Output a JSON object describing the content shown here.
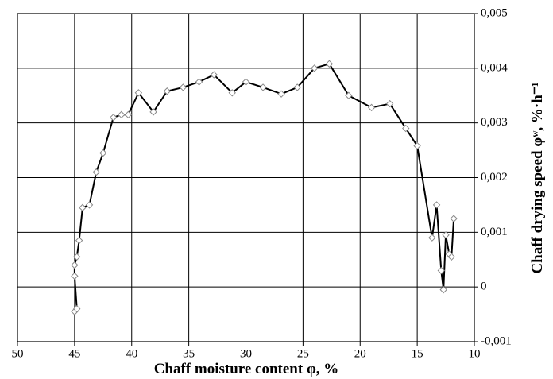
{
  "chart_data": {
    "type": "line",
    "x_label": "Chaff moisture content φ, %",
    "y_label": "Chaff drying speed φʷ, %·h⁻¹",
    "xlim": [
      50,
      10
    ],
    "xticks": [
      50,
      45,
      40,
      35,
      30,
      25,
      20,
      15,
      10
    ],
    "ylim": [
      -0.001,
      0.005
    ],
    "yticks": [
      {
        "value": -0.001,
        "label": "-0,001"
      },
      {
        "value": 0,
        "label": "0"
      },
      {
        "value": 0.001,
        "label": "0,001"
      },
      {
        "value": 0.002,
        "label": "0,002"
      },
      {
        "value": 0.003,
        "label": "0,003"
      },
      {
        "value": 0.004,
        "label": "0,004"
      },
      {
        "value": 0.005,
        "label": "0,005"
      }
    ],
    "grid": true,
    "line_color": "#000000",
    "marker_color": "#888888",
    "x": [
      45.0,
      44.8,
      45.0,
      45.0,
      44.8,
      44.6,
      44.3,
      43.7,
      43.1,
      42.5,
      41.6,
      40.9,
      40.3,
      39.4,
      38.1,
      36.9,
      35.5,
      34.1,
      32.8,
      31.2,
      30.0,
      28.5,
      26.9,
      25.5,
      24.0,
      22.7,
      21.0,
      19.0,
      17.4,
      16.0,
      15.0,
      13.7,
      13.3,
      12.9,
      12.7,
      12.5,
      12.2,
      12.0,
      11.8
    ],
    "values": [
      -0.00045,
      -0.0004,
      0.0002,
      0.0004,
      0.00055,
      0.00085,
      0.00145,
      0.0015,
      0.0021,
      0.00245,
      0.0031,
      0.00315,
      0.00315,
      0.00355,
      0.0032,
      0.00358,
      0.00365,
      0.00375,
      0.00388,
      0.00355,
      0.00375,
      0.00365,
      0.00353,
      0.00365,
      0.004,
      0.00408,
      0.0035,
      0.00328,
      0.00335,
      0.0029,
      0.00258,
      0.0009,
      0.0015,
      0.0003,
      -5e-05,
      0.00095,
      0.0006,
      0.00055,
      0.00125
    ]
  }
}
